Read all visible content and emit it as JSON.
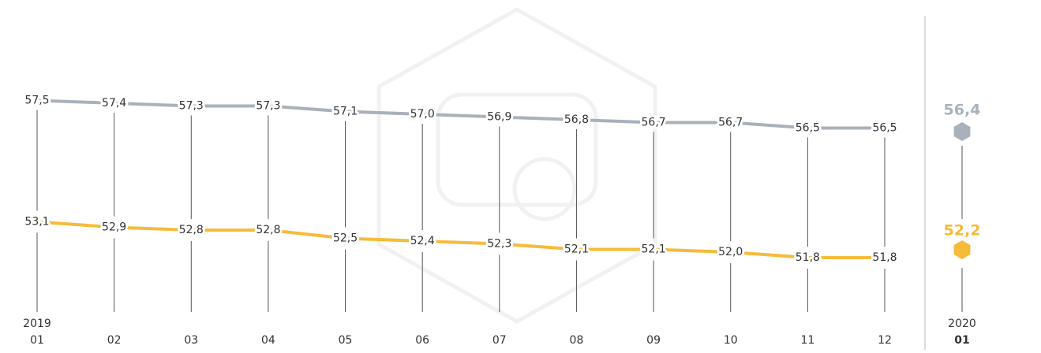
{
  "chart_data": {
    "type": "line",
    "year": "2019",
    "categories": [
      "01",
      "02",
      "03",
      "04",
      "05",
      "06",
      "07",
      "08",
      "09",
      "10",
      "11",
      "12"
    ],
    "series": [
      {
        "color": "#a9b1bb",
        "values": [
          57.5,
          57.4,
          57.3,
          57.3,
          57.1,
          57.0,
          56.9,
          56.8,
          56.7,
          56.7,
          56.5,
          56.5
        ],
        "value_labels": [
          "57,5",
          "57,4",
          "57,3",
          "57,3",
          "57,1",
          "57,0",
          "56,9",
          "56,8",
          "56,7",
          "56,7",
          "56,5",
          "56,5"
        ]
      },
      {
        "color": "#f5bb3a",
        "values": [
          53.1,
          52.9,
          52.8,
          52.8,
          52.5,
          52.4,
          52.3,
          52.1,
          52.1,
          52.0,
          51.8,
          51.8
        ],
        "value_labels": [
          "53,1",
          "52,9",
          "52,8",
          "52,8",
          "52,5",
          "52,4",
          "52,3",
          "52,1",
          "52,1",
          "52,0",
          "51,8",
          "51,8"
        ]
      }
    ],
    "ylim": [
      50,
      60
    ],
    "highlight": {
      "year": "2020",
      "category": "01",
      "values": [
        56.4,
        52.2
      ],
      "value_labels": [
        "56,4",
        "52,2"
      ]
    }
  }
}
